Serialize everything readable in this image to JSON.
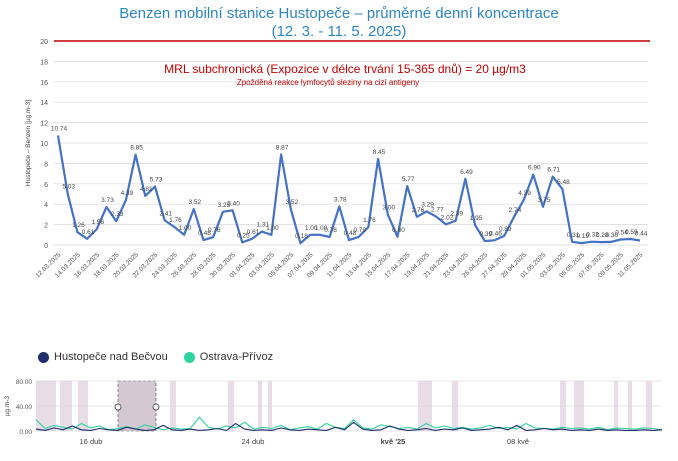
{
  "title_line1": "Benzen mobilní stanice Hustopeče – průměrné denní koncentrace",
  "title_line2": "(12. 3. - 11. 5. 2025)",
  "colors": {
    "series": "#4472c4",
    "limit": "#c00000",
    "title": "#2e86c1",
    "mini_hust": "#1f2d6b",
    "mini_ostrava": "#2ed3a0"
  },
  "chart_data": [
    {
      "type": "line",
      "ylabel": "Hustopeče – Benzen  [µg.m-3]",
      "ylim": [
        0,
        20
      ],
      "yticks": [
        "0",
        "2",
        "4",
        "6",
        "8",
        "10",
        "12",
        "14",
        "16",
        "18",
        "20"
      ],
      "grid": true,
      "limit_line": {
        "value": 20,
        "label": "MRL subchronická (Expozice v délce trvání 15-365 dnů) = 20 µg/m3",
        "sublabel": "Zpožděná reakce lymfocytů sleziny na cizí antigeny"
      },
      "xtick_labels": [
        "12.03.2025",
        "14.03.2025",
        "16.03.2025",
        "18.03.2025",
        "20.03.2025",
        "22.03.2025",
        "24.03.2025",
        "26.03.2025",
        "28.03.2025",
        "30.03.2025",
        "01.04.2025",
        "03.04.2025",
        "05.04.2025",
        "07.04.2025",
        "09.04.2025",
        "11.04.2025",
        "13.04.2025",
        "15.04.2025",
        "17.04.2025",
        "19.04.2025",
        "21.04.2025",
        "23.04.2025",
        "25.04.2025",
        "27.04.2025",
        "29.04.2025",
        "01.05.2025",
        "03.05.2025",
        "05.05.2025",
        "07.05.2025",
        "09.05.2025",
        "11.05.2025"
      ],
      "values": [
        10.74,
        5.03,
        1.26,
        0.61,
        1.56,
        3.73,
        2.33,
        4.39,
        8.85,
        4.81,
        5.73,
        2.41,
        1.76,
        1.0,
        3.52,
        0.48,
        0.76,
        3.25,
        3.4,
        0.25,
        0.61,
        1.31,
        1.0,
        8.87,
        3.52,
        0.18,
        1.0,
        1.0,
        0.78,
        3.78,
        0.48,
        0.79,
        1.76,
        8.45,
        3.0,
        0.8,
        5.77,
        2.76,
        3.29,
        2.77,
        2.02,
        2.39,
        6.49,
        1.95,
        0.39,
        0.46,
        0.89,
        2.74,
        4.39,
        6.9,
        3.75,
        6.71,
        5.48,
        0.31,
        0.19,
        0.32,
        0.28,
        0.3,
        0.54,
        0.59,
        0.44
      ],
      "data_labels": [
        "10.74",
        "5.03",
        "1.26",
        "0.61",
        "1.56",
        "3.73",
        "2.33",
        "4.39",
        "8.85",
        "4.81",
        "5.73",
        "2.41",
        "1.76",
        "1.00",
        "3.52",
        "0.48",
        "0.76",
        "3.25",
        "3.40",
        "0.25",
        "0.61",
        "1.31",
        "1.00",
        "8.87",
        "3.52",
        "0.18",
        "1.00",
        "1.00",
        "0.78",
        "3.78",
        "0.48",
        "0.79",
        "1.76",
        "8.45",
        "3.00",
        "0.80",
        "5.77",
        "2.76",
        "3.29",
        "2.77",
        "2.02",
        "2.39",
        "6.49",
        "1.95",
        "0.39",
        "0.46",
        "0.89",
        "2.74",
        "4.39",
        "6.90",
        "3.75",
        "6.71",
        "5.48",
        "0.31",
        "0.19",
        "0.32",
        "0.28",
        "0.30",
        "0.54",
        "0.59",
        "0.44"
      ]
    },
    {
      "type": "line",
      "ylabel": "µg.m-3",
      "ylim": [
        0,
        80
      ],
      "yticks": [
        "0.00",
        "40.00",
        "80.00"
      ],
      "xtick_labels": [
        "16 dub",
        "24 dub",
        "kvě '25",
        "08 kvě"
      ],
      "series": [
        {
          "name": "Hustopeče nad Bečvou",
          "values": [
            3,
            1,
            5,
            2,
            8,
            2,
            1,
            4,
            2,
            1,
            6,
            3,
            1,
            2,
            9,
            2,
            1,
            3,
            1,
            2,
            4,
            1,
            12,
            3,
            1,
            2,
            1,
            5,
            2,
            1,
            3,
            2,
            1,
            6,
            2,
            14,
            3,
            1,
            2,
            8,
            3,
            1,
            2,
            4,
            1,
            3,
            2,
            5,
            1,
            2,
            3,
            6,
            2,
            9,
            1,
            2,
            4,
            2,
            3,
            1,
            2,
            1,
            3,
            1,
            2,
            1,
            1,
            2,
            1,
            2
          ]
        },
        {
          "name": "Ostrava-Přívoz",
          "values": [
            18,
            4,
            9,
            6,
            3,
            12,
            5,
            8,
            2,
            4,
            7,
            3,
            10,
            6,
            2,
            5,
            3,
            4,
            22,
            6,
            3,
            8,
            5,
            14,
            3,
            6,
            4,
            9,
            2,
            5,
            7,
            3,
            12,
            6,
            4,
            18,
            5,
            3,
            10,
            7,
            4,
            6,
            3,
            12,
            5,
            8,
            4,
            6,
            3,
            5,
            9,
            4,
            6,
            3,
            12,
            5,
            4,
            3,
            6,
            4,
            5,
            3,
            6,
            2,
            5,
            4,
            3,
            5,
            4,
            2
          ]
        }
      ]
    }
  ]
}
